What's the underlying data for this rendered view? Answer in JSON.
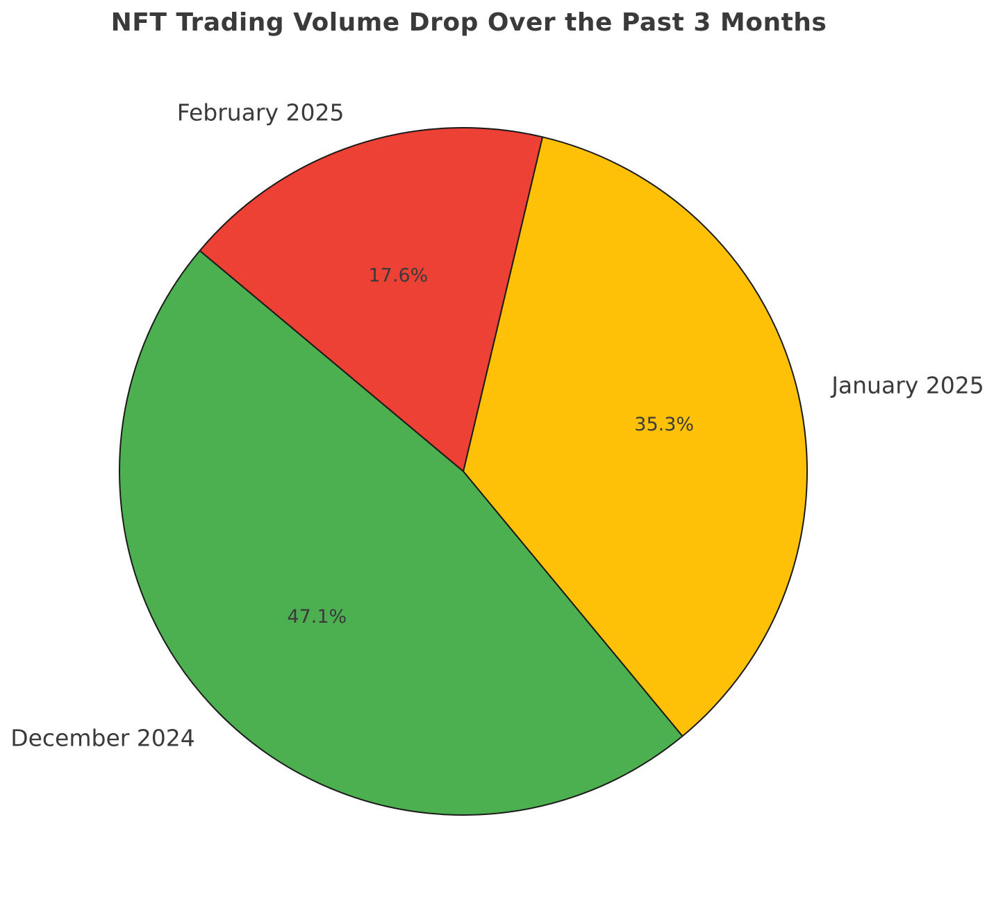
{
  "page": {
    "background_color": "#ffffff"
  },
  "chart_data": {
    "type": "pie",
    "title": "NFT Trading Volume Drop Over the Past 3 Months",
    "slices": [
      {
        "label": "January 2025",
        "percent": 35.3,
        "pct_label": "35.3%",
        "color": "#FFC107"
      },
      {
        "label": "February 2025",
        "percent": 17.6,
        "pct_label": "17.6%",
        "color": "#EE4136"
      },
      {
        "label": "December 2024",
        "percent": 47.1,
        "pct_label": "47.1%",
        "color": "#4CAF50"
      }
    ],
    "start_angle_deg": -50.4,
    "direction": "counterclockwise",
    "label_distance": 1.1,
    "pct_distance": 0.6,
    "edge_color": "#1a1a1a",
    "edge_width": 2,
    "text_color": "#3a3a3a",
    "legend": "none",
    "grid": "off"
  }
}
